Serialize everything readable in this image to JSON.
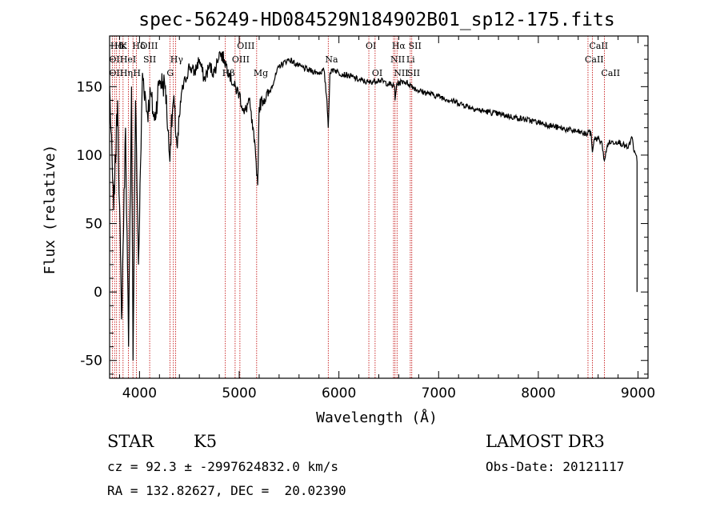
{
  "chart_data": {
    "type": "line",
    "title": "spec-56249-HD084529N184902B01_sp12-175.fits",
    "xlabel": "Wavelength (Å)",
    "ylabel": "Flux (relative)",
    "xlim": [
      3700,
      9100
    ],
    "ylim": [
      -63,
      187
    ],
    "xticks": [
      "4000",
      "5000",
      "6000",
      "7000",
      "8000",
      "9000"
    ],
    "yticks": [
      "-50",
      "0",
      "50",
      "100",
      "150"
    ],
    "series": [
      {
        "name": "flux",
        "x": [
          3700,
          3740,
          3780,
          3820,
          3860,
          3890,
          3920,
          3935,
          3960,
          3990,
          4030,
          4080,
          4110,
          4150,
          4200,
          4260,
          4300,
          4340,
          4380,
          4420,
          4460,
          4500,
          4550,
          4600,
          4650,
          4700,
          4750,
          4800,
          4850,
          4900,
          4950,
          5000,
          5050,
          5100,
          5150,
          5170,
          5185,
          5200,
          5230,
          5300,
          5400,
          5500,
          5600,
          5700,
          5800,
          5850,
          5880,
          5893,
          5910,
          5950,
          6000,
          6100,
          6200,
          6300,
          6400,
          6500,
          6560,
          6563,
          6580,
          6650,
          6700,
          6800,
          6900,
          7000,
          7200,
          7400,
          7600,
          7800,
          8000,
          8200,
          8400,
          8490,
          8500,
          8530,
          8542,
          8560,
          8600,
          8640,
          8662,
          8700,
          8800,
          8900,
          8940,
          8960,
          8980,
          8990
        ],
        "y": [
          150,
          60,
          140,
          -20,
          120,
          -40,
          150,
          -50,
          140,
          20,
          160,
          130,
          145,
          125,
          155,
          150,
          100,
          140,
          105,
          145,
          155,
          165,
          160,
          170,
          155,
          165,
          160,
          175,
          170,
          160,
          150,
          145,
          130,
          140,
          110,
          95,
          78,
          135,
          140,
          145,
          165,
          170,
          165,
          162,
          160,
          162,
          140,
          120,
          160,
          163,
          160,
          158,
          155,
          153,
          155,
          152,
          150,
          140,
          152,
          154,
          152,
          147,
          145,
          143,
          138,
          133,
          130,
          127,
          124,
          120,
          117,
          115,
          118,
          115,
          102,
          112,
          112,
          108,
          96,
          109,
          110,
          105,
          113,
          102,
          100,
          95
        ]
      }
    ],
    "spectral_lines": [
      {
        "label": "Hδ",
        "x": 3740,
        "row": 1
      },
      {
        "label": "Hε",
        "x": 3781,
        "row": 1
      },
      {
        "label": "K",
        "x": 3840,
        "row": 1
      },
      {
        "label": "Hδ",
        "x": 3960,
        "row": 1
      },
      {
        "label": "OIII",
        "x": 4040,
        "row": 1
      },
      {
        "label": "OIII",
        "x": 5010,
        "row": 1
      },
      {
        "label": "OI",
        "x": 6300,
        "row": 1
      },
      {
        "label": "Hα",
        "x": 6563,
        "row": 1
      },
      {
        "label": "SII",
        "x": 6730,
        "row": 1
      },
      {
        "label": "CaII",
        "x": 8542,
        "row": 1
      },
      {
        "label": "OII",
        "x": 3727,
        "row": 2
      },
      {
        "label": "HeI",
        "x": 3835,
        "row": 2
      },
      {
        "label": "SII",
        "x": 4069,
        "row": 2
      },
      {
        "label": "Hγ",
        "x": 4340,
        "row": 2
      },
      {
        "label": "OIII",
        "x": 4959,
        "row": 2
      },
      {
        "label": "Na",
        "x": 5893,
        "row": 2
      },
      {
        "label": "NII",
        "x": 6548,
        "row": 2
      },
      {
        "label": "Li",
        "x": 6708,
        "row": 2
      },
      {
        "label": "CaII",
        "x": 8498,
        "row": 2
      },
      {
        "label": "OII",
        "x": 3727,
        "row": 3
      },
      {
        "label": "Hη",
        "x": 3835,
        "row": 3
      },
      {
        "label": "H",
        "x": 3968,
        "row": 3
      },
      {
        "label": "G",
        "x": 4305,
        "row": 3
      },
      {
        "label": "Hβ",
        "x": 4861,
        "row": 3
      },
      {
        "label": "Mg",
        "x": 5175,
        "row": 3
      },
      {
        "label": "OI",
        "x": 6363,
        "row": 3
      },
      {
        "label": "NII",
        "x": 6583,
        "row": 3
      },
      {
        "label": "SII",
        "x": 6716,
        "row": 3
      },
      {
        "label": "CaII",
        "x": 8662,
        "row": 3
      }
    ],
    "line_markers_x": [
      3727,
      3750,
      3770,
      3798,
      3835,
      3889,
      3934,
      3968,
      4102,
      4305,
      4340,
      4363,
      4861,
      4959,
      5007,
      5175,
      5893,
      6300,
      6363,
      6548,
      6563,
      6583,
      6716,
      6731,
      8498,
      8542,
      8662
    ],
    "colors": {
      "line": "#000000",
      "markers": "#c00000",
      "axes": "#000000"
    }
  },
  "info": {
    "class": "STAR",
    "subclass": "K5",
    "survey": "LAMOST DR3",
    "cz": "cz = 92.3 ± -2997624832.0 km/s",
    "obs_date": "Obs-Date: 20121117",
    "radec": "RA = 132.82627, DEC =  20.02390"
  }
}
